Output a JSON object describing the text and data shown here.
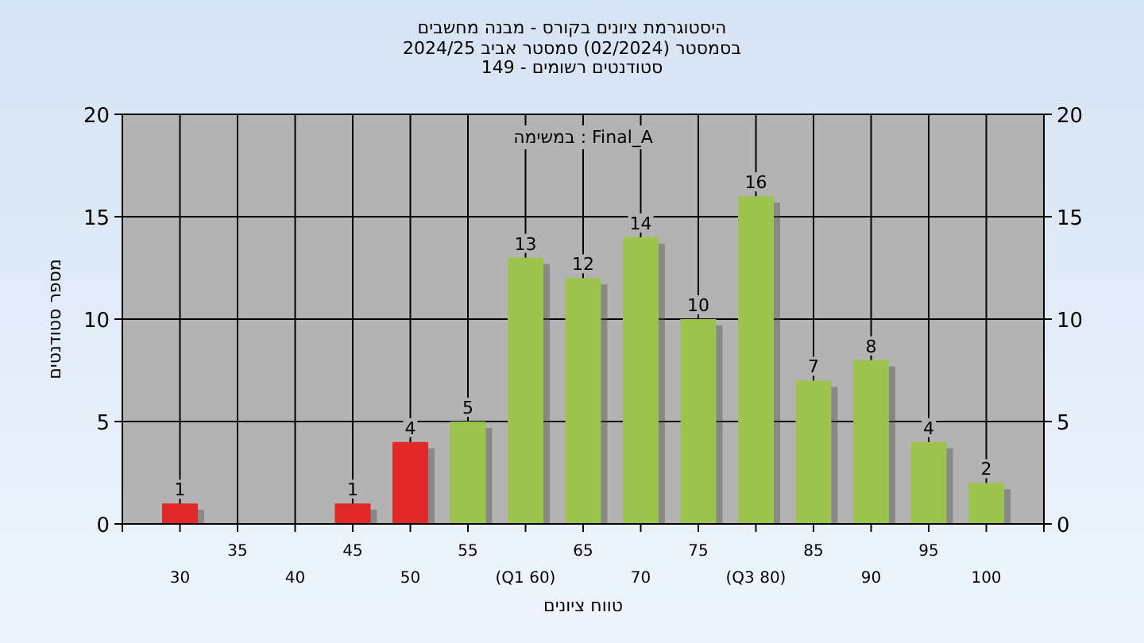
{
  "chart_data": {
    "type": "bar",
    "title": "היסטוגרמת ציונים בקורס - מבנה מחשבים",
    "subtitle": "בסמסטר  (02/2024)  סמסטר אביב 2024/25\nסטודנטים רשומים - 149",
    "xlabel": "טווח ציונים",
    "ylabel": "מספר סטודנטים",
    "annotations": [
      "במשימה : Final_A"
    ],
    "categories": [
      "30",
      "35",
      "40",
      "45",
      "50",
      "55",
      "(Q1 60)",
      "65",
      "70",
      "75",
      "(Q3 80)",
      "85",
      "90",
      "95",
      "100"
    ],
    "series": [
      {
        "colors": [
          "#e02828",
          "#e02828",
          "#e02828",
          "#e02828",
          "#e02828",
          "#9cc44c",
          "#9cc44c",
          "#9cc44c",
          "#9cc44c",
          "#9cc44c",
          "#9cc44c",
          "#9cc44c",
          "#9cc44c",
          "#9cc44c",
          "#9cc44c"
        ],
        "values": [
          1,
          0,
          0,
          1,
          4,
          5,
          13,
          12,
          14,
          10,
          16,
          7,
          8,
          4,
          2
        ],
        "value_labels": [
          "1",
          null,
          null,
          "1",
          "4",
          "5",
          "13",
          "12",
          "14",
          "10",
          "16",
          "7",
          "8",
          "4",
          "2"
        ]
      }
    ],
    "ylim": [
      0,
      20
    ],
    "yticks": [
      0,
      5,
      10,
      15,
      20
    ],
    "y2lim": [
      0,
      20
    ],
    "y2ticks": [
      0,
      5,
      10,
      15,
      20
    ],
    "grid": true
  }
}
